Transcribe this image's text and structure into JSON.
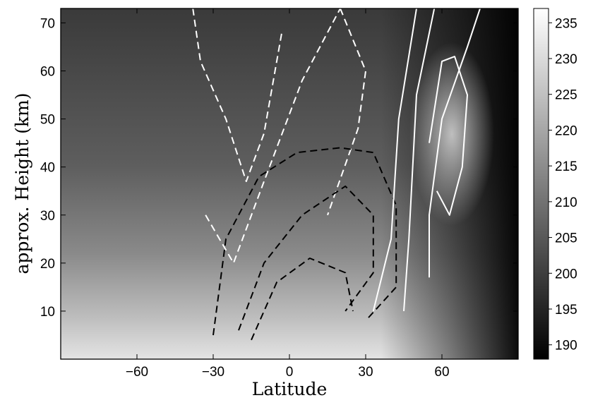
{
  "chart_data": {
    "type": "contour",
    "xlabel": "Latitude",
    "ylabel": "approx. Height (km)",
    "xlim": [
      -90,
      90
    ],
    "ylim": [
      0,
      73
    ],
    "xticks": [
      -60,
      -30,
      0,
      30,
      60
    ],
    "yticks": [
      10,
      20,
      30,
      40,
      50,
      60,
      70
    ],
    "grid": false,
    "colorbar": {
      "label": "",
      "range": [
        188,
        237
      ],
      "ticks": [
        190,
        195,
        200,
        205,
        210,
        215,
        220,
        225,
        230,
        235
      ],
      "colormap": [
        "#000000",
        "#ffffff"
      ]
    },
    "filled_field": {
      "description_units": "temperature scale shown by colorbar",
      "summary": "warm near surface at low/mid latitudes (~228-235), cold tropopause region ~15-20 km at equator (~205), very cold high-latitude northern stratosphere (~190), warm northern polar stratosphere band near 60N 40-60 km (~225)"
    },
    "contour_lines": [
      {
        "style": "white-dashed",
        "lines": [
          [
            [
              -90,
              73
            ],
            [
              -90,
              73
            ]
          ],
          [
            [
              -38,
              73
            ],
            [
              -35,
              62
            ],
            [
              -25,
              50
            ],
            [
              -17,
              37
            ],
            [
              -10,
              47
            ],
            [
              -3,
              68
            ]
          ],
          [
            [
              -33,
              30
            ],
            [
              -22,
              20
            ],
            [
              -10,
              37
            ],
            [
              5,
              58
            ],
            [
              20,
              73
            ]
          ],
          [
            [
              20,
              73
            ],
            [
              30,
              60
            ],
            [
              27,
              48
            ],
            [
              15,
              30
            ]
          ]
        ]
      },
      {
        "style": "black-dashed",
        "lines": [
          [
            [
              -30,
              5
            ],
            [
              -25,
              25
            ],
            [
              -12,
              38
            ],
            [
              3,
              43
            ],
            [
              20,
              44
            ],
            [
              33,
              43
            ],
            [
              42,
              32
            ],
            [
              42,
              15
            ],
            [
              30,
              8
            ]
          ],
          [
            [
              -20,
              6
            ],
            [
              -10,
              20
            ],
            [
              5,
              30
            ],
            [
              22,
              36
            ],
            [
              33,
              30
            ],
            [
              33,
              18
            ],
            [
              22,
              10
            ]
          ],
          [
            [
              -15,
              4
            ],
            [
              -5,
              16
            ],
            [
              8,
              21
            ],
            [
              22,
              18
            ],
            [
              25,
              10
            ]
          ]
        ]
      },
      {
        "style": "white-solid",
        "lines": [
          [
            [
              33,
              10
            ],
            [
              40,
              25
            ],
            [
              43,
              50
            ],
            [
              50,
              73
            ]
          ],
          [
            [
              45,
              10
            ],
            [
              47,
              25
            ],
            [
              50,
              55
            ],
            [
              57,
              73
            ]
          ],
          [
            [
              55,
              17
            ],
            [
              55,
              30
            ],
            [
              60,
              50
            ],
            [
              70,
              65
            ],
            [
              75,
              73
            ]
          ],
          [
            [
              55,
              45
            ],
            [
              60,
              62
            ],
            [
              65,
              63
            ],
            [
              70,
              55
            ],
            [
              68,
              40
            ],
            [
              63,
              30
            ],
            [
              58,
              35
            ]
          ]
        ]
      }
    ]
  }
}
